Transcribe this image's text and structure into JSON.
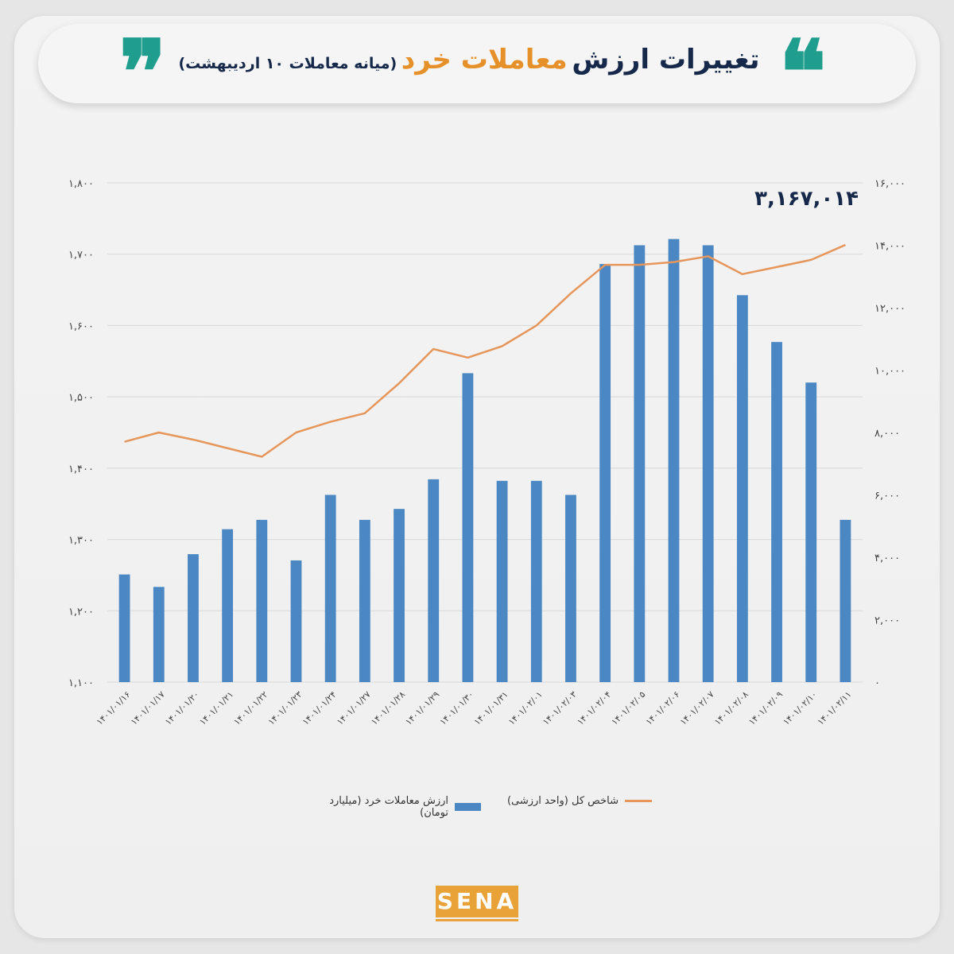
{
  "title": {
    "part1": "تغییرات ارزش",
    "part2": "معاملات خرد",
    "part3": "(میانه معاملات ۱۰ اردیبهشت)",
    "quote_open": "❝",
    "quote_close": "❞"
  },
  "legend": {
    "bars": "ارزش معاملات خرد (میلیارد تومان)",
    "line": "شاخص کل (واحد ارزشی)"
  },
  "logo": "SENA",
  "colors": {
    "bar": "#4b88c3",
    "line": "#e6965a",
    "title_dark": "#16294a",
    "title_accent": "#e6902a",
    "quote": "#1f9e8e"
  },
  "chart_data": {
    "type": "bar",
    "categories": [
      "۱۴۰۱/۰۱/۱۶",
      "۱۴۰۱/۰۱/۱۷",
      "۱۴۰۱/۰۱/۲۰",
      "۱۴۰۱/۰۱/۲۱",
      "۱۴۰۱/۰۱/۲۲",
      "۱۴۰۱/۰۱/۲۳",
      "۱۴۰۱/۰۱/۲۴",
      "۱۴۰۱/۰۱/۲۷",
      "۱۴۰۱/۰۱/۲۸",
      "۱۴۰۱/۰۱/۲۹",
      "۱۴۰۱/۰۱/۳۰",
      "۱۴۰۱/۰۱/۳۱",
      "۱۴۰۱/۰۲/۰۱",
      "۱۴۰۱/۰۲/۰۳",
      "۱۴۰۱/۰۲/۰۴",
      "۱۴۰۱/۰۲/۰۵",
      "۱۴۰۱/۰۲/۰۶",
      "۱۴۰۱/۰۲/۰۷",
      "۱۴۰۱/۰۲/۰۸",
      "۱۴۰۱/۰۲/۰۹",
      "۱۴۰۱/۰۲/۱۰",
      "۱۴۰۱/۰۲/۱۱"
    ],
    "series": [
      {
        "name": "ارزش معاملات خرد (میلیارد تومان)",
        "type": "bar",
        "axis": "right",
        "values": [
          3450,
          3050,
          4100,
          4900,
          5200,
          3900,
          6000,
          5200,
          5550,
          6500,
          9900,
          6450,
          6450,
          6000,
          13400,
          14000,
          14200,
          14000,
          12400,
          10900,
          9600,
          5200
        ]
      },
      {
        "name": "شاخص کل (واحد ارزشی)",
        "type": "line",
        "axis": "left",
        "values": [
          1.437,
          1.45,
          1.44,
          1.428,
          1.416,
          1.45,
          1.465,
          1.477,
          1.519,
          1.567,
          1.555,
          1.571,
          1.6,
          1.645,
          1.685,
          1.685,
          1.689,
          1.697,
          1.672,
          1.682,
          1.692,
          1.713
        ]
      }
    ],
    "left_axis": {
      "min": 1.1,
      "max": 1.8,
      "ticks": [
        "۱,۱۰۰",
        "۱,۲۰۰",
        "۱,۳۰۰",
        "۱,۴۰۰",
        "۱,۵۰۰",
        "۱,۶۰۰",
        "۱,۷۰۰",
        "۱,۸۰۰"
      ]
    },
    "right_axis": {
      "min": 0,
      "max": 16000,
      "ticks": [
        "۰",
        "۲,۰۰۰",
        "۴,۰۰۰",
        "۶,۰۰۰",
        "۸,۰۰۰",
        "۱۰,۰۰۰",
        "۱۲,۰۰۰",
        "۱۴,۰۰۰",
        "۱۶,۰۰۰"
      ]
    },
    "annotation": "۳,۱۶۷,۰۱۴",
    "grid": true,
    "legend_position": "bottom"
  }
}
